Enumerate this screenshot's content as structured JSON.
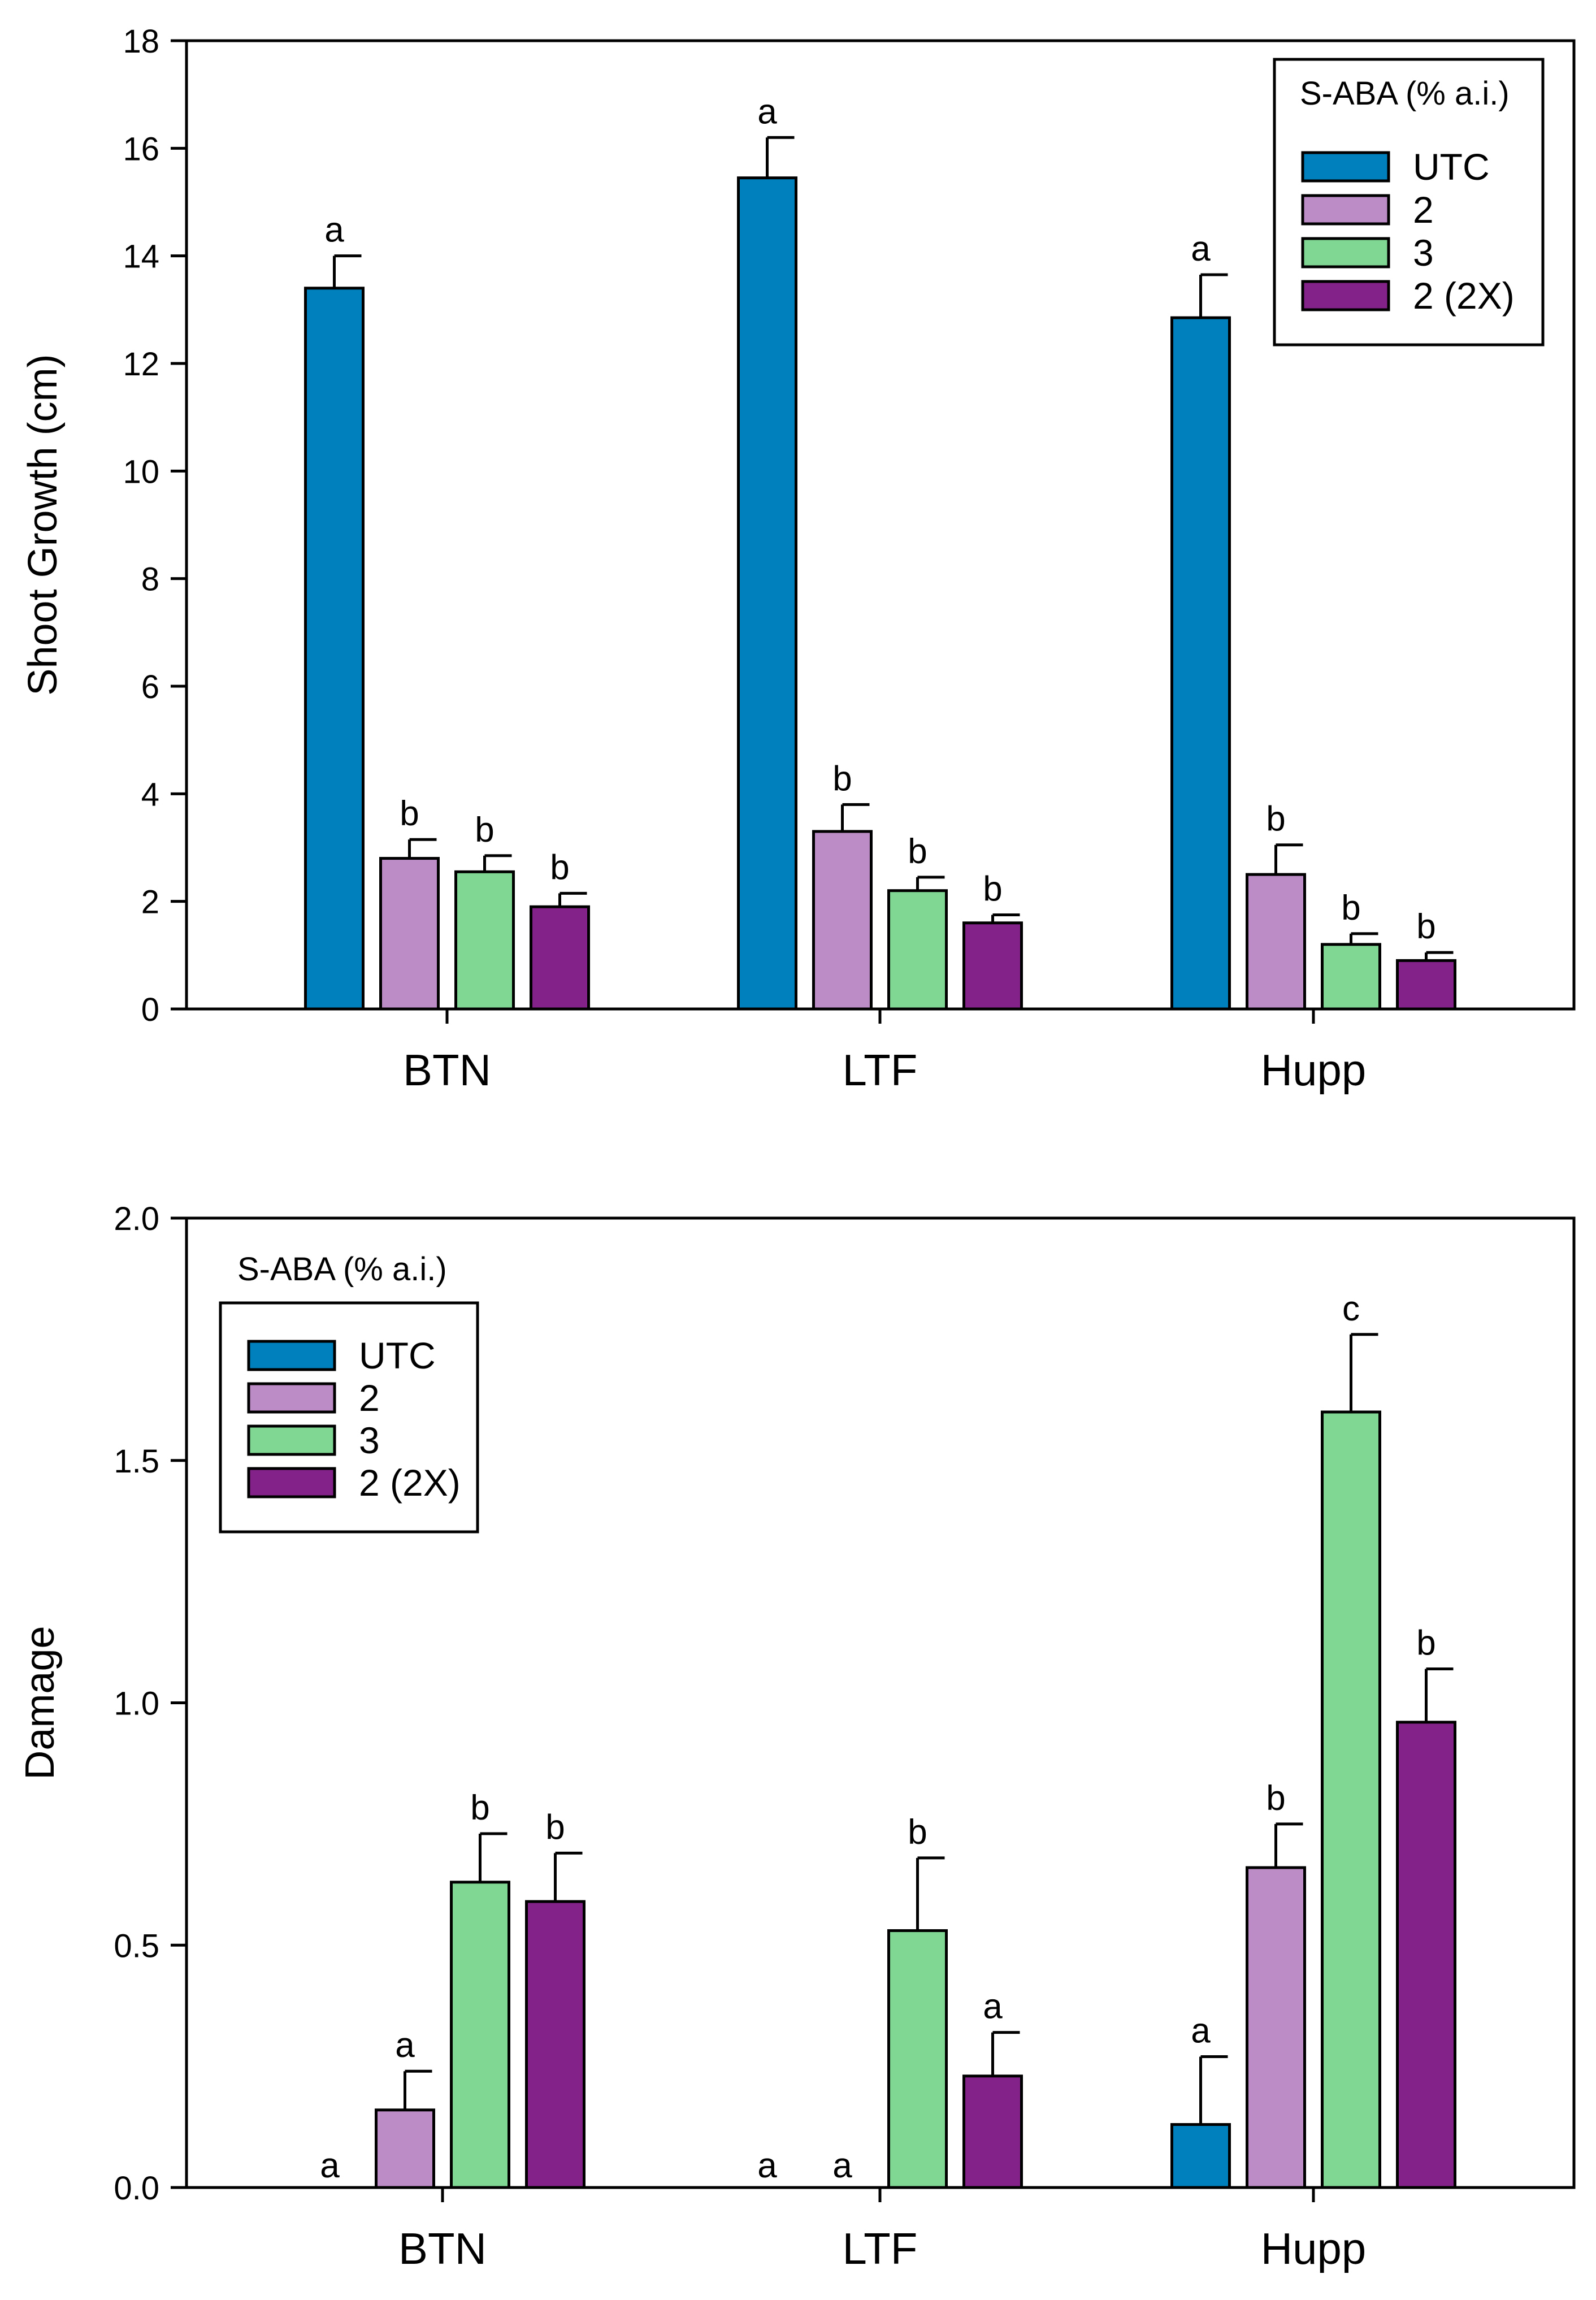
{
  "colors": {
    "UTC": "#0080bd",
    "2": "#bb8cc6",
    "3": "#80d693",
    "2 (2X)": "#83238a"
  },
  "chart_data": [
    {
      "type": "bar",
      "title": "",
      "xlabel": "",
      "ylabel": "Shoot Growth (cm)",
      "ylim": [
        0,
        18
      ],
      "yticks": [
        0,
        2,
        4,
        6,
        8,
        10,
        12,
        14,
        16,
        18
      ],
      "ytick_labels": [
        "0",
        "2",
        "4",
        "6",
        "8",
        "10",
        "12",
        "14",
        "16",
        "18"
      ],
      "categories": [
        "BTN",
        "LTF",
        "Hupp"
      ],
      "legend_title": "S-ABA (% a.i.)",
      "legend_position": "top-right",
      "series": [
        {
          "name": "UTC",
          "values": [
            13.4,
            15.45,
            12.85
          ],
          "errors": [
            0.6,
            0.75,
            0.8
          ],
          "labels": [
            "a",
            "a",
            "a"
          ]
        },
        {
          "name": "2",
          "values": [
            2.8,
            3.3,
            2.5
          ],
          "errors": [
            0.35,
            0.5,
            0.55
          ],
          "labels": [
            "b",
            "b",
            "b"
          ]
        },
        {
          "name": "3",
          "values": [
            2.55,
            2.2,
            1.2
          ],
          "errors": [
            0.3,
            0.25,
            0.2
          ],
          "labels": [
            "b",
            "b",
            "b"
          ]
        },
        {
          "name": "2 (2X)",
          "values": [
            1.9,
            1.6,
            0.9
          ],
          "errors": [
            0.25,
            0.15,
            0.15
          ],
          "labels": [
            "b",
            "b",
            "b"
          ]
        }
      ]
    },
    {
      "type": "bar",
      "title": "",
      "xlabel": "",
      "ylabel": "Damage",
      "ylim": [
        0,
        2.0
      ],
      "yticks": [
        0,
        0.5,
        1.0,
        1.5,
        2.0
      ],
      "ytick_labels": [
        "0.0",
        "0.5",
        "1.0",
        "1.5",
        "2.0"
      ],
      "categories": [
        "BTN",
        "LTF",
        "Hupp"
      ],
      "legend_title": "S-ABA (% a.i.)",
      "legend_position": "top-left",
      "series": [
        {
          "name": "UTC",
          "values": [
            0,
            0,
            0.13
          ],
          "errors": [
            0,
            0,
            0.14
          ],
          "labels": [
            "a",
            "a",
            "a"
          ]
        },
        {
          "name": "2",
          "values": [
            0.16,
            0,
            0.66
          ],
          "errors": [
            0.08,
            0,
            0.09
          ],
          "labels": [
            "a",
            "a",
            "b"
          ]
        },
        {
          "name": "3",
          "values": [
            0.63,
            0.53,
            1.6
          ],
          "errors": [
            0.1,
            0.15,
            0.16
          ],
          "labels": [
            "b",
            "b",
            "c"
          ]
        },
        {
          "name": "2 (2X)",
          "values": [
            0.59,
            0.23,
            0.96
          ],
          "errors": [
            0.1,
            0.09,
            0.11
          ],
          "labels": [
            "b",
            "a",
            "b"
          ]
        }
      ]
    }
  ]
}
